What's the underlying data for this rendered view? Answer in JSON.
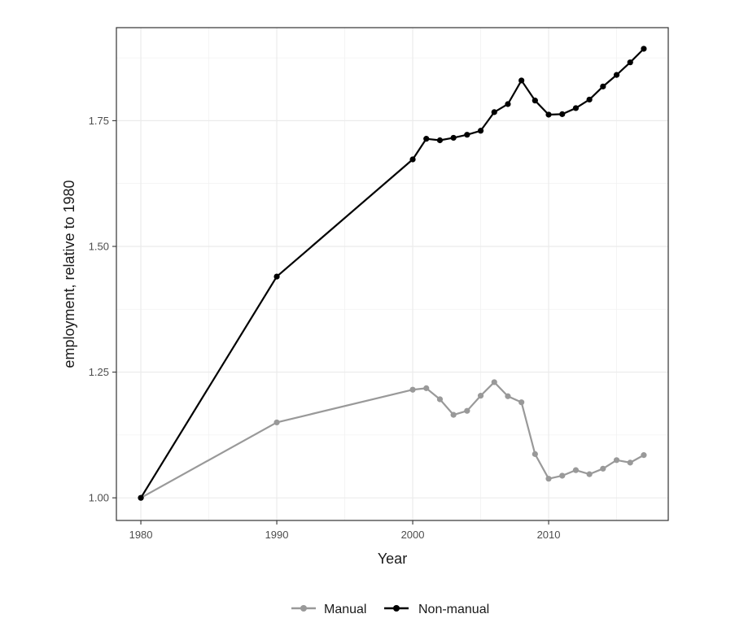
{
  "chart_data": {
    "type": "line",
    "xlabel": "Year",
    "ylabel": "employment, relative to 1980",
    "xlim": [
      1978.2,
      2018.8
    ],
    "ylim": [
      0.955,
      1.935
    ],
    "x_ticks": [
      1980,
      1990,
      2000,
      2010
    ],
    "x_tick_labels": [
      "1980",
      "1990",
      "2000",
      "2010"
    ],
    "y_ticks": [
      1.0,
      1.25,
      1.5,
      1.75
    ],
    "y_tick_labels": [
      "1.00",
      "1.25",
      "1.50",
      "1.75"
    ],
    "grid": true,
    "legend_position": "bottom",
    "series": [
      {
        "name": "Manual",
        "color": "#999999",
        "x": [
          1980,
          1990,
          2000,
          2001,
          2002,
          2003,
          2004,
          2005,
          2006,
          2007,
          2008,
          2009,
          2010,
          2011,
          2012,
          2013,
          2014,
          2015,
          2016,
          2017
        ],
        "y": [
          1.0,
          1.15,
          1.215,
          1.218,
          1.196,
          1.165,
          1.173,
          1.203,
          1.23,
          1.202,
          1.19,
          1.087,
          1.038,
          1.044,
          1.055,
          1.047,
          1.058,
          1.075,
          1.07,
          1.085
        ]
      },
      {
        "name": "Non-manual",
        "color": "#000000",
        "x": [
          1980,
          1990,
          2000,
          2001,
          2002,
          2003,
          2004,
          2005,
          2006,
          2007,
          2008,
          2009,
          2010,
          2011,
          2012,
          2013,
          2014,
          2015,
          2016,
          2017
        ],
        "y": [
          1.0,
          1.44,
          1.673,
          1.714,
          1.711,
          1.716,
          1.722,
          1.73,
          1.767,
          1.783,
          1.83,
          1.79,
          1.762,
          1.763,
          1.775,
          1.792,
          1.818,
          1.841,
          1.866,
          1.893
        ]
      }
    ]
  }
}
